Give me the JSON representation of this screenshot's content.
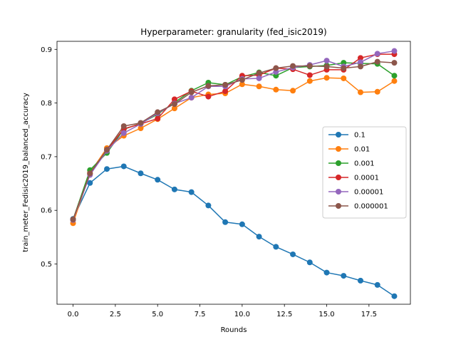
{
  "chart_data": {
    "type": "line",
    "title": "Hyperparameter: granularity (fed_isic2019)",
    "xlabel": "Rounds",
    "ylabel": "train_meter_Fedisic2019_balanced_accuracy",
    "xlim": [
      -0.95,
      19.95
    ],
    "ylim": [
      0.425,
      0.915
    ],
    "xticks": [
      "0.0",
      "2.5",
      "5.0",
      "7.5",
      "10.0",
      "12.5",
      "15.0",
      "17.5"
    ],
    "xtick_values": [
      0,
      2.5,
      5,
      7.5,
      10,
      12.5,
      15,
      17.5
    ],
    "yticks": [
      "0.5",
      "0.6",
      "0.7",
      "0.8",
      "0.9"
    ],
    "ytick_values": [
      0.5,
      0.6,
      0.7,
      0.8,
      0.9
    ],
    "x": [
      0,
      1,
      2,
      3,
      4,
      5,
      6,
      7,
      8,
      9,
      10,
      11,
      12,
      13,
      14,
      15,
      16,
      17,
      18,
      19
    ],
    "legend_position": "center-right",
    "grid": false,
    "series": [
      {
        "name": "0.1",
        "color": "#1f77b4",
        "values": [
          0.584,
          0.651,
          0.677,
          0.682,
          0.669,
          0.657,
          0.639,
          0.634,
          0.609,
          0.578,
          0.574,
          0.551,
          0.532,
          0.518,
          0.503,
          0.484,
          0.478,
          0.469,
          0.461,
          0.44
        ]
      },
      {
        "name": "0.01",
        "color": "#ff7f0e",
        "values": [
          0.576,
          0.67,
          0.716,
          0.739,
          0.753,
          0.77,
          0.79,
          0.81,
          0.816,
          0.818,
          0.835,
          0.831,
          0.825,
          0.823,
          0.841,
          0.847,
          0.846,
          0.82,
          0.821,
          0.841
        ]
      },
      {
        "name": "0.001",
        "color": "#2ca02c",
        "values": [
          0.583,
          0.675,
          0.707,
          0.751,
          0.762,
          0.779,
          0.801,
          0.823,
          0.838,
          0.834,
          0.849,
          0.857,
          0.851,
          0.866,
          0.868,
          0.87,
          0.875,
          0.874,
          0.873,
          0.851
        ]
      },
      {
        "name": "0.0001",
        "color": "#d62728",
        "values": [
          0.583,
          0.668,
          0.712,
          0.752,
          0.761,
          0.771,
          0.807,
          0.822,
          0.812,
          0.822,
          0.851,
          0.852,
          0.865,
          0.863,
          0.852,
          0.862,
          0.862,
          0.884,
          0.891,
          0.891
        ]
      },
      {
        "name": "0.00001",
        "color": "#9467bd",
        "values": [
          0.582,
          0.666,
          0.711,
          0.744,
          0.761,
          0.781,
          0.799,
          0.81,
          0.831,
          0.831,
          0.845,
          0.846,
          0.858,
          0.866,
          0.871,
          0.879,
          0.868,
          0.876,
          0.892,
          0.897
        ]
      },
      {
        "name": "0.000001",
        "color": "#8c564b",
        "values": [
          0.583,
          0.669,
          0.713,
          0.757,
          0.763,
          0.783,
          0.798,
          0.82,
          0.832,
          0.834,
          0.843,
          0.856,
          0.865,
          0.869,
          0.869,
          0.868,
          0.865,
          0.868,
          0.877,
          0.875
        ]
      }
    ]
  }
}
